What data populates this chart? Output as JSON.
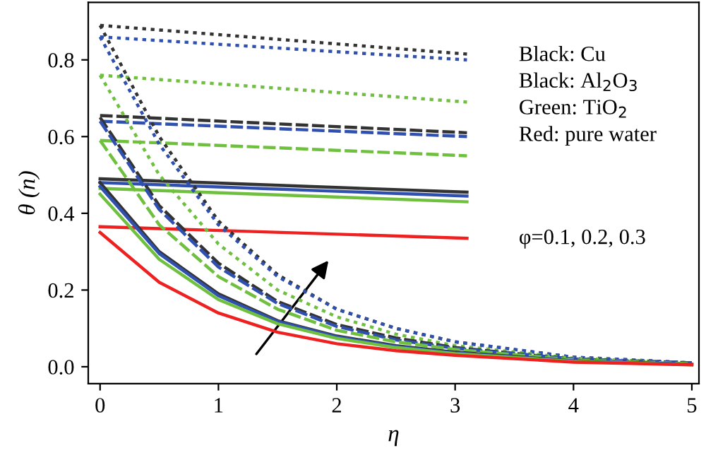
{
  "chart_data": {
    "type": "line",
    "xlabel": "η",
    "ylabel": "θ (n)",
    "xlim": [
      -0.1,
      5.06
    ],
    "ylim": [
      -0.044,
      0.95
    ],
    "xticks": [
      0,
      1,
      2,
      3,
      4,
      5
    ],
    "yticks": [
      {
        "value": 0,
        "label": "0.0"
      },
      0.2,
      0.4,
      0.6,
      0.8
    ],
    "grid": false,
    "legend": false,
    "marker": "none",
    "annotations": [
      "Black: Cu",
      "Black: Al$_{2}$O$_{3}$",
      "Green: TiO$_{2}$",
      "Red: pure water",
      "φ=0.1, 0.2, 0.3"
    ],
    "series": [
      {
        "color": "#333333",
        "line_style": "dotted",
        "x": [
          0,
          3.1
        ],
        "values": [
          0.89,
          0.815
        ]
      },
      {
        "color": "#3050b0",
        "line_style": "dotted",
        "x": [
          0,
          3.1
        ],
        "values": [
          0.86,
          0.8
        ]
      },
      {
        "color": "#70c040",
        "line_style": "dotted",
        "x": [
          0,
          3.1
        ],
        "values": [
          0.76,
          0.69
        ]
      },
      {
        "color": "#333333",
        "line_style": "dashed",
        "x": [
          0,
          3.1
        ],
        "values": [
          0.655,
          0.61
        ]
      },
      {
        "color": "#3050b0",
        "line_style": "dashed",
        "x": [
          0,
          3.1
        ],
        "values": [
          0.64,
          0.6
        ]
      },
      {
        "color": "#70c040",
        "line_style": "dashed",
        "x": [
          0,
          3.1
        ],
        "values": [
          0.59,
          0.55
        ]
      },
      {
        "color": "#333333",
        "line_style": "solid",
        "x": [
          0,
          3.1
        ],
        "values": [
          0.49,
          0.455
        ]
      },
      {
        "color": "#3050b0",
        "line_style": "solid",
        "x": [
          0,
          3.1
        ],
        "values": [
          0.48,
          0.445
        ]
      },
      {
        "color": "#70c040",
        "line_style": "solid",
        "x": [
          0,
          3.1
        ],
        "values": [
          0.465,
          0.43
        ]
      },
      {
        "color": "#ee2020",
        "line_style": "solid",
        "x": [
          0,
          3.1
        ],
        "values": [
          0.365,
          0.335
        ]
      },
      {
        "color": "#333333",
        "line_style": "dotted",
        "x": [
          0,
          0.5,
          1,
          1.5,
          2,
          2.5,
          3,
          4,
          5
        ],
        "values": [
          0.89,
          0.6,
          0.38,
          0.24,
          0.15,
          0.1,
          0.065,
          0.025,
          0.01
        ]
      },
      {
        "color": "#3050b0",
        "line_style": "dotted",
        "x": [
          0,
          0.5,
          1,
          1.5,
          2,
          2.5,
          3,
          4,
          5
        ],
        "values": [
          0.86,
          0.58,
          0.37,
          0.235,
          0.15,
          0.1,
          0.065,
          0.025,
          0.01
        ]
      },
      {
        "color": "#70c040",
        "line_style": "dotted",
        "x": [
          0,
          0.5,
          1,
          1.5,
          2,
          2.5,
          3,
          4,
          5
        ],
        "values": [
          0.76,
          0.5,
          0.32,
          0.2,
          0.13,
          0.085,
          0.055,
          0.022,
          0.01
        ]
      },
      {
        "color": "#333333",
        "line_style": "dashed",
        "x": [
          0,
          0.5,
          1,
          1.5,
          2,
          2.5,
          3,
          4,
          5
        ],
        "values": [
          0.65,
          0.42,
          0.27,
          0.17,
          0.11,
          0.075,
          0.05,
          0.02,
          0.01
        ]
      },
      {
        "color": "#3050b0",
        "line_style": "dashed",
        "x": [
          0,
          0.5,
          1,
          1.5,
          2,
          2.5,
          3,
          4,
          5
        ],
        "values": [
          0.64,
          0.41,
          0.26,
          0.165,
          0.105,
          0.07,
          0.048,
          0.02,
          0.01
        ]
      },
      {
        "color": "#70c040",
        "line_style": "dashed",
        "x": [
          0,
          0.5,
          1,
          1.5,
          2,
          2.5,
          3,
          4,
          5
        ],
        "values": [
          0.59,
          0.37,
          0.235,
          0.15,
          0.095,
          0.065,
          0.045,
          0.018,
          0.008
        ]
      },
      {
        "color": "#333333",
        "line_style": "solid",
        "x": [
          0,
          0.5,
          1,
          1.5,
          2,
          2.5,
          3,
          4,
          5
        ],
        "values": [
          0.48,
          0.3,
          0.19,
          0.12,
          0.08,
          0.055,
          0.038,
          0.015,
          0.006
        ]
      },
      {
        "color": "#3050b0",
        "line_style": "solid",
        "x": [
          0,
          0.5,
          1,
          1.5,
          2,
          2.5,
          3,
          4,
          5
        ],
        "values": [
          0.47,
          0.295,
          0.185,
          0.118,
          0.078,
          0.053,
          0.036,
          0.015,
          0.006
        ]
      },
      {
        "color": "#70c040",
        "line_style": "solid",
        "x": [
          0,
          0.5,
          1,
          1.5,
          2,
          2.5,
          3,
          4,
          5
        ],
        "values": [
          0.45,
          0.28,
          0.175,
          0.112,
          0.074,
          0.05,
          0.034,
          0.014,
          0.005
        ]
      },
      {
        "color": "#ee2020",
        "line_style": "solid",
        "x": [
          0,
          0.5,
          1,
          1.5,
          2,
          2.5,
          3,
          4,
          5
        ],
        "values": [
          0.35,
          0.22,
          0.14,
          0.09,
          0.06,
          0.042,
          0.03,
          0.012,
          0.005
        ]
      }
    ]
  }
}
